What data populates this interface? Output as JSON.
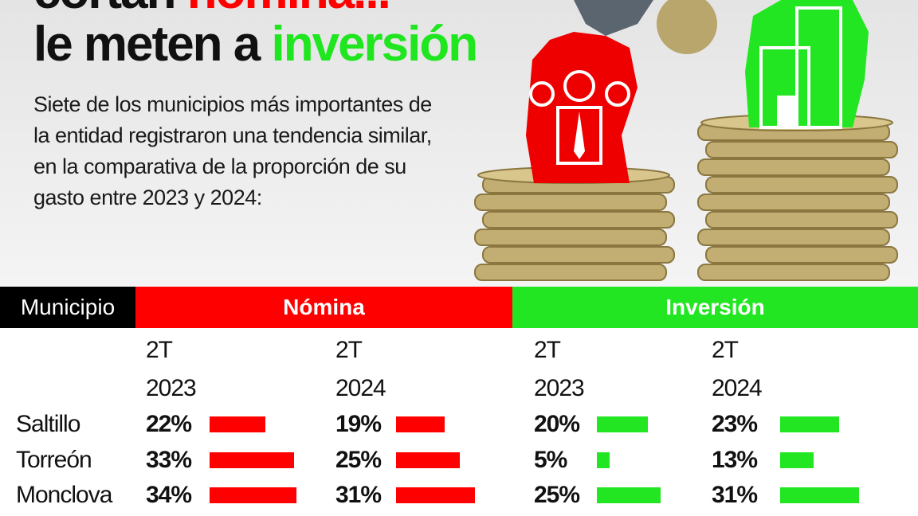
{
  "headline": {
    "line1_prefix": "cortan ",
    "line1_highlight": "nómina...",
    "line2_prefix": "le meten a ",
    "line2_highlight": "inversión"
  },
  "intro": "Siete de los municipios más importantes de la entidad registraron una tendencia similar, en la comparativa de la proporción de su gasto entre 2023 y 2024:",
  "colors": {
    "nomina": "#ff0000",
    "inversion": "#22e622",
    "header_black": "#000000"
  },
  "chart_data": {
    "type": "table",
    "headers": {
      "municipio": "Municipio",
      "nomina": "Nómina",
      "inversion": "Inversión"
    },
    "periods": [
      {
        "q": "2T",
        "year": "2023"
      },
      {
        "q": "2T",
        "year": "2024"
      },
      {
        "q": "2T",
        "year": "2023"
      },
      {
        "q": "2T",
        "year": "2024"
      }
    ],
    "rows": [
      {
        "name": "Saltillo",
        "values": [
          22,
          19,
          20,
          23
        ],
        "labels": [
          "22%",
          "19%",
          "20%",
          "23%"
        ]
      },
      {
        "name": "Torreón",
        "values": [
          33,
          25,
          5,
          13
        ],
        "labels": [
          "33%",
          "25%",
          "5%",
          "13%"
        ]
      },
      {
        "name": "Monclova",
        "values": [
          34,
          31,
          25,
          31
        ],
        "labels": [
          "34%",
          "31%",
          "25%",
          "31%"
        ]
      }
    ]
  }
}
